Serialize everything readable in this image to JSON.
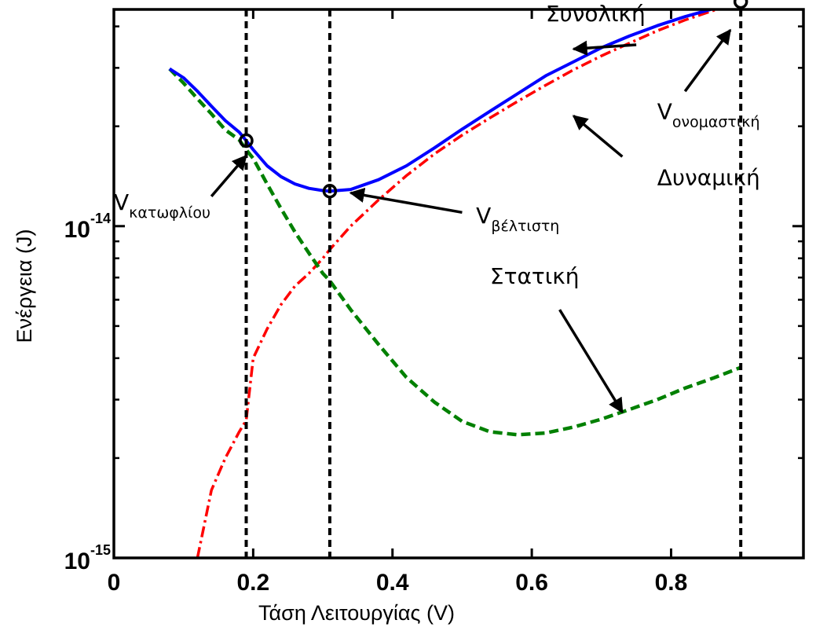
{
  "chart_data": {
    "type": "line",
    "xlabel": "Τάση Λειτουργίας (V)",
    "ylabel": "Ενέργεια (J)",
    "xlim": [
      0,
      0.99
    ],
    "ylim": [
      1e-15,
      4.5e-14
    ],
    "yscale": "log",
    "grid": false,
    "legend": "none",
    "x_ticks": [
      {
        "value": 0,
        "label": "0"
      },
      {
        "value": 0.2,
        "label": "0.2"
      },
      {
        "value": 0.4,
        "label": "0.4"
      },
      {
        "value": 0.6,
        "label": "0.6"
      },
      {
        "value": 0.8,
        "label": "0.8"
      }
    ],
    "y_ticks": [
      {
        "value": 1e-15,
        "base": "10",
        "exponent": "-15"
      },
      {
        "value": 1e-14,
        "base": "10",
        "exponent": "-14"
      }
    ],
    "series": [
      {
        "key": "total",
        "color": "#0000ff",
        "style": "solid",
        "x": [
          0.08,
          0.1,
          0.12,
          0.14,
          0.16,
          0.18,
          0.19,
          0.2,
          0.22,
          0.24,
          0.26,
          0.28,
          0.3,
          0.31,
          0.34,
          0.38,
          0.42,
          0.46,
          0.5,
          0.54,
          0.58,
          0.62,
          0.66,
          0.7,
          0.74,
          0.78,
          0.82,
          0.86,
          0.9
        ],
        "y": [
          2.98e-14,
          2.8e-14,
          2.55e-14,
          2.3e-14,
          2.08e-14,
          1.92e-14,
          1.81e-14,
          1.7e-14,
          1.52e-14,
          1.41e-14,
          1.34e-14,
          1.3e-14,
          1.28e-14,
          1.275e-14,
          1.29e-14,
          1.38e-14,
          1.52e-14,
          1.72e-14,
          1.96e-14,
          2.22e-14,
          2.51e-14,
          2.84e-14,
          3.13e-14,
          3.45e-14,
          3.74e-14,
          4.02e-14,
          4.28e-14,
          4.52e-14,
          4.75e-14
        ]
      },
      {
        "key": "dynamic",
        "color": "#ff0000",
        "style": "dashdot",
        "x": [
          0.12,
          0.14,
          0.16,
          0.18,
          0.19,
          0.2,
          0.22,
          0.24,
          0.26,
          0.28,
          0.3,
          0.31,
          0.34,
          0.38,
          0.42,
          0.46,
          0.5,
          0.54,
          0.58,
          0.62,
          0.66,
          0.7,
          0.74,
          0.78,
          0.82,
          0.86,
          0.9
        ],
        "y": [
          1e-15,
          1.6e-15,
          2e-15,
          2.4e-15,
          2.6e-15,
          4e-15,
          4.9e-15,
          5.8e-15,
          6.6e-15,
          7.2e-15,
          8e-15,
          8.5e-15,
          1e-14,
          1.2e-14,
          1.42e-14,
          1.65e-14,
          1.88e-14,
          2.12e-14,
          2.38e-14,
          2.66e-14,
          2.96e-14,
          3.26e-14,
          3.56e-14,
          3.88e-14,
          4.18e-14,
          4.46e-14,
          4.75e-14
        ]
      },
      {
        "key": "static",
        "color": "#008000",
        "style": "dashed",
        "x": [
          0.08,
          0.1,
          0.12,
          0.14,
          0.16,
          0.18,
          0.19,
          0.2,
          0.22,
          0.24,
          0.26,
          0.28,
          0.3,
          0.31,
          0.34,
          0.38,
          0.42,
          0.46,
          0.5,
          0.54,
          0.58,
          0.62,
          0.66,
          0.7,
          0.74,
          0.78,
          0.82,
          0.86,
          0.9
        ],
        "y": [
          2.98e-14,
          2.7e-14,
          2.42e-14,
          2.18e-14,
          1.95e-14,
          1.82e-14,
          1.7e-14,
          1.6e-14,
          1.34e-14,
          1.13e-14,
          9.6e-15,
          8.3e-15,
          7.2e-15,
          6.85e-15,
          5.6e-15,
          4.4e-15,
          3.5e-15,
          2.95e-15,
          2.58e-15,
          2.4e-15,
          2.35e-15,
          2.38e-15,
          2.48e-15,
          2.62e-15,
          2.8e-15,
          3e-15,
          3.25e-15,
          3.48e-15,
          3.75e-15
        ]
      }
    ],
    "vertical_lines": [
      0.19,
      0.31,
      0.9
    ],
    "markers": [
      {
        "x": 0.19,
        "y": 1.81e-14
      },
      {
        "x": 0.31,
        "y": 1.275e-14
      },
      {
        "x": 0.9,
        "y": 4.75e-14
      }
    ],
    "annotations": [
      {
        "key": "total",
        "text": "Συνολική",
        "sub": "",
        "tx": 0.62,
        "ty": 4.15e-14,
        "ax": 0.66,
        "ay": 3.42e-14,
        "bx": 0.75,
        "by": 3.52e-14
      },
      {
        "key": "dynamic",
        "text": "Δυναμική",
        "sub": "",
        "tx": 0.78,
        "ty": 1.33e-14,
        "ax": 0.66,
        "ay": 2.15e-14,
        "bx": 0.73,
        "by": 1.62e-14
      },
      {
        "key": "static",
        "text": "Στατική",
        "sub": "",
        "tx": 0.54,
        "ty": 6.7e-15,
        "ax": 0.73,
        "ay": 2.75e-15,
        "bx": 0.64,
        "by": 5.6e-15
      },
      {
        "key": "vnom",
        "text": "V",
        "sub": "ονομαστική",
        "tx": 0.78,
        "ty": 2.1e-14,
        "ax": 0.885,
        "ay": 3.9e-14,
        "bx": 0.82,
        "by": 2.55e-14
      },
      {
        "key": "vthr",
        "text": "V",
        "sub": "κατωφλίου",
        "tx": 0.0,
        "ty": 1.12e-14,
        "ax": 0.19,
        "ay": 1.63e-14,
        "bx": 0.14,
        "by": 1.23e-14
      },
      {
        "key": "vopt",
        "text": "V",
        "sub": "βέλτιστη",
        "tx": 0.52,
        "ty": 1.02e-14,
        "ax": 0.34,
        "ay": 1.26e-14,
        "bx": 0.5,
        "by": 1.1e-14
      }
    ]
  }
}
